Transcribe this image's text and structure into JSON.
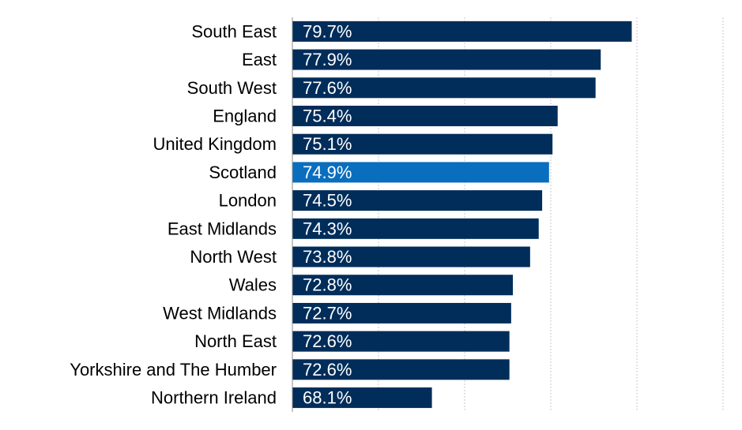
{
  "chart_data": {
    "type": "bar",
    "orientation": "horizontal",
    "categories": [
      "South East",
      "East",
      "South West",
      "England",
      "United Kingdom",
      "Scotland",
      "London",
      "East Midlands",
      "North West",
      "Wales",
      "West Midlands",
      "North East",
      "Yorkshire and The Humber",
      "Northern Ireland"
    ],
    "values": [
      79.7,
      77.9,
      77.6,
      75.4,
      75.1,
      74.9,
      74.5,
      74.3,
      73.8,
      72.8,
      72.7,
      72.6,
      72.6,
      68.1
    ],
    "value_labels": [
      "79.7%",
      "77.9%",
      "77.6%",
      "75.4%",
      "75.1%",
      "74.9%",
      "74.5%",
      "74.3%",
      "73.8%",
      "72.8%",
      "72.7%",
      "72.6%",
      "72.6%",
      "68.1%"
    ],
    "title": "",
    "xlabel": "",
    "ylabel": "",
    "xlim": [
      60,
      85
    ],
    "x_gridlines": [
      65,
      70,
      75,
      80,
      85
    ],
    "grid": true,
    "legend": "none",
    "colors": {
      "default_bar": "#002d5a",
      "highlight_bar": "#0a6ebe",
      "highlight_category": "Scotland"
    }
  }
}
